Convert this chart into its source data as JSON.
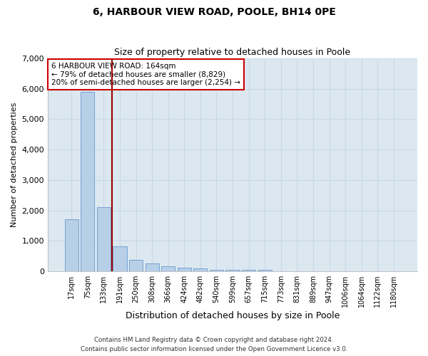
{
  "title": "6, HARBOUR VIEW ROAD, POOLE, BH14 0PE",
  "subtitle": "Size of property relative to detached houses in Poole",
  "xlabel": "Distribution of detached houses by size in Poole",
  "ylabel": "Number of detached properties",
  "bar_color": "#b8cfe8",
  "bar_edge_color": "#6699cc",
  "grid_color": "#c8d8e8",
  "background_color": "#dce8f0",
  "vline_color": "#990000",
  "vline_x": 2.5,
  "annotation_text": "6 HARBOUR VIEW ROAD: 164sqm\n← 79% of detached houses are smaller (8,829)\n20% of semi-detached houses are larger (2,254) →",
  "annotation_box_color": "#cc0000",
  "categories": [
    "17sqm",
    "75sqm",
    "133sqm",
    "191sqm",
    "250sqm",
    "308sqm",
    "366sqm",
    "424sqm",
    "482sqm",
    "540sqm",
    "599sqm",
    "657sqm",
    "715sqm",
    "773sqm",
    "831sqm",
    "889sqm",
    "947sqm",
    "1006sqm",
    "1064sqm",
    "1122sqm",
    "1180sqm"
  ],
  "values": [
    1700,
    5900,
    2100,
    820,
    380,
    260,
    170,
    110,
    85,
    60,
    50,
    50,
    50,
    0,
    0,
    0,
    0,
    0,
    0,
    0,
    0
  ],
  "ylim": [
    0,
    7000
  ],
  "yticks": [
    0,
    1000,
    2000,
    3000,
    4000,
    5000,
    6000,
    7000
  ],
  "footer1": "Contains HM Land Registry data © Crown copyright and database right 2024.",
  "footer2": "Contains public sector information licensed under the Open Government Licence v3.0."
}
